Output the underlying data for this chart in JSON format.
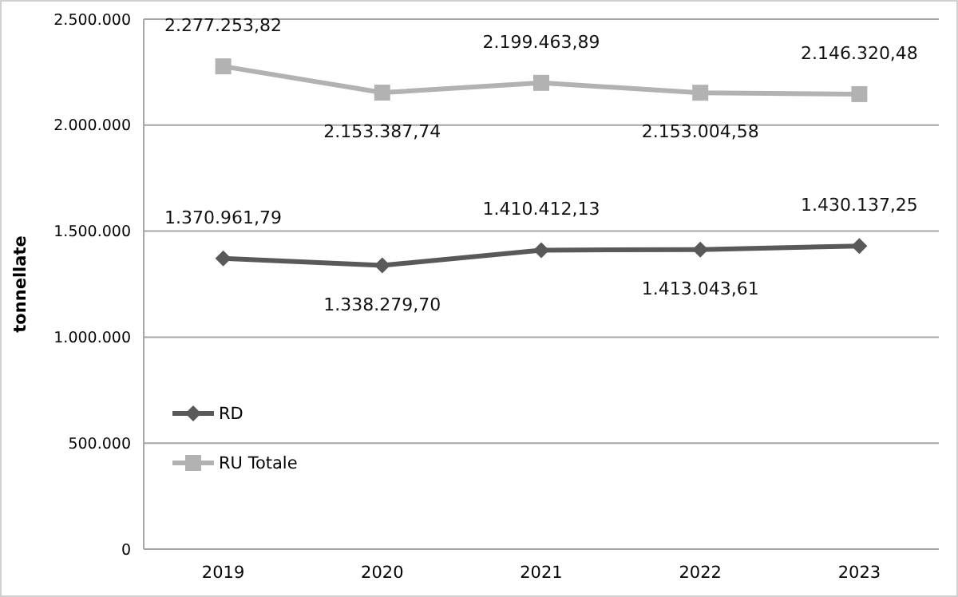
{
  "chart_data": {
    "type": "line",
    "ylabel": "tonnellate",
    "categories": [
      "2019",
      "2020",
      "2021",
      "2022",
      "2023"
    ],
    "series": [
      {
        "name": "RD",
        "color": "#595959",
        "marker": "diamond",
        "values": [
          1370961.79,
          1338279.7,
          1410412.13,
          1413043.61,
          1430137.25
        ],
        "value_labels": [
          "1.370.961,79",
          "1.338.279,70",
          "1.410.412,13",
          "1.413.043,61",
          "1.430.137,25"
        ]
      },
      {
        "name": "RU Totale",
        "color": "#b2b2b2",
        "marker": "square",
        "values": [
          2277253.82,
          2153387.74,
          2199463.89,
          2153004.58,
          2146320.48
        ],
        "value_labels": [
          "2.277.253,82",
          "2.153.387,74",
          "2.199.463,89",
          "2.153.004,58",
          "2.146.320,48"
        ]
      }
    ],
    "ylim": [
      0,
      2500000
    ],
    "yticks": [
      0,
      {
        "value": 500000,
        "label": "500.000"
      },
      {
        "value": 1000000,
        "label": "1.000.000"
      },
      {
        "value": 1500000,
        "label": "1.500.000"
      },
      {
        "value": 2000000,
        "label": "2.000.000"
      },
      {
        "value": 2500000,
        "label": "2.500.000"
      }
    ],
    "grid": "y",
    "legend": "left"
  }
}
